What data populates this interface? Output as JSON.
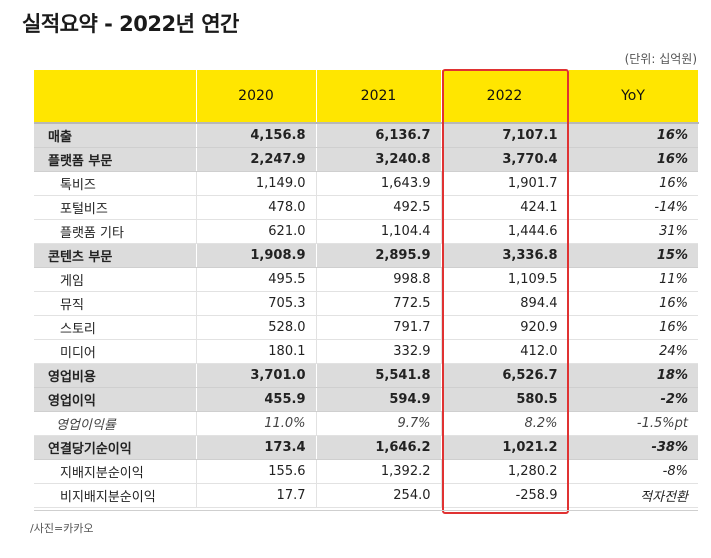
{
  "title": "실적요약 - 2022년 연간",
  "unit": "(단위: 십억원)",
  "source": "/사진=카카오",
  "colors": {
    "header_bg": "#ffe600",
    "highlight_border": "#e03232",
    "bold_row_bg": "#dcdcdc"
  },
  "headers": [
    "",
    "2020",
    "2021",
    "2022",
    "YoY"
  ],
  "rows": [
    {
      "label": "매출",
      "v2020": "4,156.8",
      "v2021": "6,136.7",
      "v2022": "7,107.1",
      "yoy": "16%"
    },
    {
      "label": "플랫폼 부문",
      "v2020": "2,247.9",
      "v2021": "3,240.8",
      "v2022": "3,770.4",
      "yoy": "16%"
    },
    {
      "label": "톡비즈",
      "v2020": "1,149.0",
      "v2021": "1,643.9",
      "v2022": "1,901.7",
      "yoy": "16%"
    },
    {
      "label": "포털비즈",
      "v2020": "478.0",
      "v2021": "492.5",
      "v2022": "424.1",
      "yoy": "-14%"
    },
    {
      "label": "플랫폼 기타",
      "v2020": "621.0",
      "v2021": "1,104.4",
      "v2022": "1,444.6",
      "yoy": "31%"
    },
    {
      "label": "콘텐츠 부문",
      "v2020": "1,908.9",
      "v2021": "2,895.9",
      "v2022": "3,336.8",
      "yoy": "15%"
    },
    {
      "label": "게임",
      "v2020": "495.5",
      "v2021": "998.8",
      "v2022": "1,109.5",
      "yoy": "11%"
    },
    {
      "label": "뮤직",
      "v2020": "705.3",
      "v2021": "772.5",
      "v2022": "894.4",
      "yoy": "16%"
    },
    {
      "label": "스토리",
      "v2020": "528.0",
      "v2021": "791.7",
      "v2022": "920.9",
      "yoy": "16%"
    },
    {
      "label": "미디어",
      "v2020": "180.1",
      "v2021": "332.9",
      "v2022": "412.0",
      "yoy": "24%"
    },
    {
      "label": "영업비용",
      "v2020": "3,701.0",
      "v2021": "5,541.8",
      "v2022": "6,526.7",
      "yoy": "18%"
    },
    {
      "label": "영업이익",
      "v2020": "455.9",
      "v2021": "594.9",
      "v2022": "580.5",
      "yoy": "-2%"
    },
    {
      "label": "영업이익률",
      "v2020": "11.0%",
      "v2021": "9.7%",
      "v2022": "8.2%",
      "yoy": "-1.5%pt"
    },
    {
      "label": "연결당기순이익",
      "v2020": "173.4",
      "v2021": "1,646.2",
      "v2022": "1,021.2",
      "yoy": "-38%"
    },
    {
      "label": "지배지분순이익",
      "v2020": "155.6",
      "v2021": "1,392.2",
      "v2022": "1,280.2",
      "yoy": "-8%"
    },
    {
      "label": "비지배지분순이익",
      "v2020": "17.7",
      "v2021": "254.0",
      "v2022": "-258.9",
      "yoy": "적자전환"
    }
  ]
}
